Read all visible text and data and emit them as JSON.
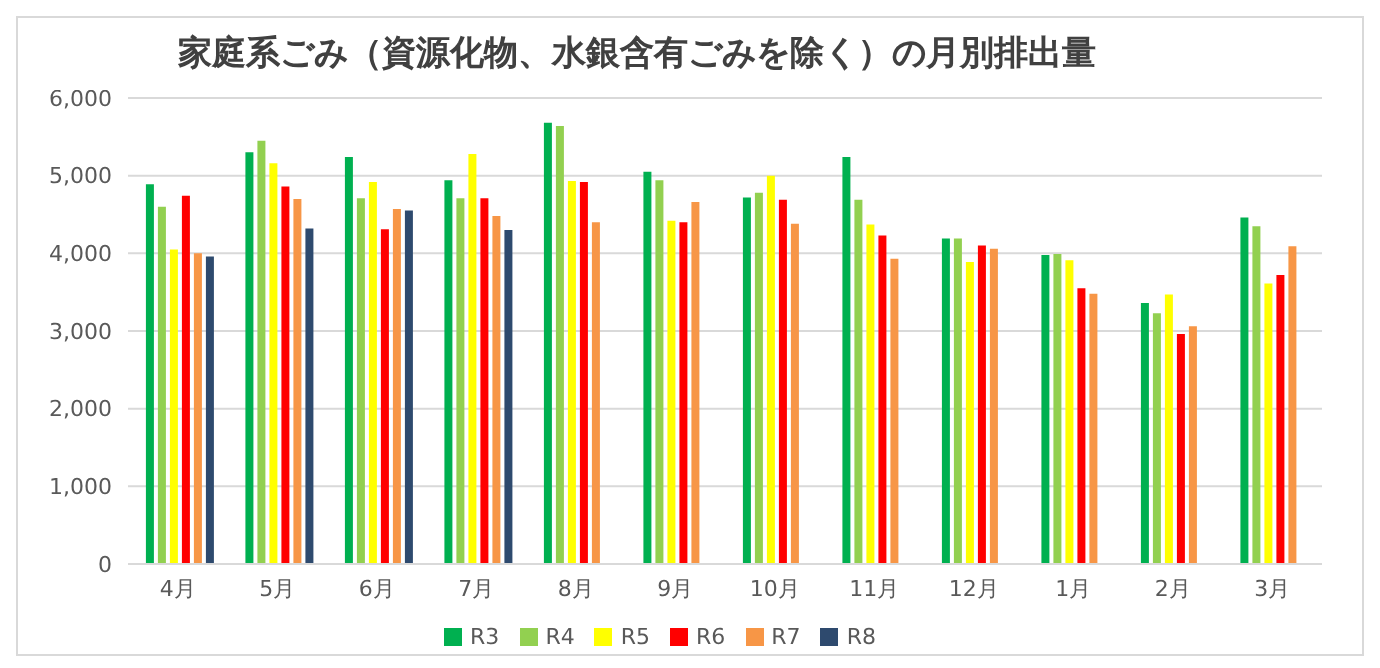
{
  "chart_data": {
    "type": "bar",
    "title": "家庭系ごみ（資源化物、水銀含有ごみを除く）の月別排出量",
    "categories": [
      "4月",
      "5月",
      "6月",
      "7月",
      "8月",
      "9月",
      "10月",
      "11月",
      "12月",
      "1月",
      "2月",
      "3月"
    ],
    "series": [
      {
        "name": "R3",
        "color": "#00b050",
        "values": [
          4890,
          5300,
          5240,
          4940,
          5680,
          5050,
          4720,
          5240,
          4190,
          3980,
          3360,
          4460
        ]
      },
      {
        "name": "R4",
        "color": "#92d050",
        "values": [
          4600,
          5450,
          4710,
          4710,
          5640,
          4940,
          4780,
          4690,
          4190,
          3990,
          3230,
          4350
        ]
      },
      {
        "name": "R5",
        "color": "#ffff00",
        "values": [
          4050,
          5160,
          4920,
          5280,
          4930,
          4420,
          5000,
          4370,
          3890,
          3910,
          3470,
          3610
        ]
      },
      {
        "name": "R6",
        "color": "#ff0000",
        "values": [
          4740,
          4860,
          4310,
          4710,
          4920,
          4400,
          4690,
          4230,
          4100,
          3550,
          2960,
          3720
        ]
      },
      {
        "name": "R7",
        "color": "#f79646",
        "values": [
          4000,
          4700,
          4570,
          4480,
          4400,
          4660,
          4380,
          3930,
          4060,
          3480,
          3060,
          4090
        ]
      },
      {
        "name": "R8",
        "color": "#2e4a6e",
        "values": [
          3960,
          4320,
          4550,
          4300,
          null,
          null,
          null,
          null,
          null,
          null,
          null,
          null
        ]
      }
    ],
    "ylim": [
      0,
      6000
    ],
    "yticks": [
      {
        "value": 0,
        "label": "0"
      },
      {
        "value": 1000,
        "label": "1,000"
      },
      {
        "value": 2000,
        "label": "2,000"
      },
      {
        "value": 3000,
        "label": "3,000"
      },
      {
        "value": 4000,
        "label": "4,000"
      },
      {
        "value": 5000,
        "label": "5,000"
      },
      {
        "value": 6000,
        "label": "6,000"
      }
    ],
    "grid": "y",
    "legend": "bottom"
  }
}
